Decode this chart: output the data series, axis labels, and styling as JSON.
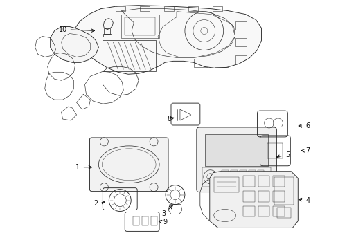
{
  "bg_color": "#ffffff",
  "line_color": "#2a2a2a",
  "label_color": "#111111",
  "figsize": [
    4.89,
    3.6
  ],
  "dpi": 100,
  "lw": 0.65,
  "fontsize": 7.0
}
